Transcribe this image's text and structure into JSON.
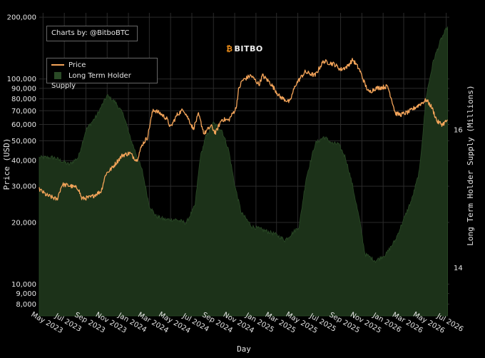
{
  "credit": "Charts by: @BitboBTC",
  "brand": {
    "name": "BITBO",
    "icon": "bitcoin-icon"
  },
  "colors": {
    "price": "#f5a55a",
    "supply_fill": "#1c3219",
    "supply_edge": "#2a4a26",
    "grid": "#2b2b2b"
  },
  "chart_data": {
    "type": "line",
    "xlabel": "Day",
    "ylabel": "Price (USD)",
    "y2label": "Long Term Holder Supply (Millions)",
    "y_scale": "log",
    "ylim": [
      7000,
      210000
    ],
    "y2lim": [
      13.3,
      17.7
    ],
    "xlim": [
      "2023-04-20",
      "2026-07-10"
    ],
    "grid": true,
    "legend_position": "top-left",
    "x_ticks": [
      "May 2023",
      "Jul 2023",
      "Sep 2023",
      "Nov 2023",
      "Jan 2024",
      "Mar 2024",
      "May 2024",
      "Jul 2024",
      "Sep 2024",
      "Nov 2024",
      "Jan 2025",
      "Mar 2025",
      "May 2025",
      "Jul 2025",
      "Sep 2025",
      "Nov 2025",
      "Jan 2026",
      "Mar 2026",
      "May 2026",
      "Jul 2026"
    ],
    "x_tick_dates": [
      "2023-05-01",
      "2023-07-01",
      "2023-09-01",
      "2023-11-01",
      "2024-01-01",
      "2024-03-01",
      "2024-05-01",
      "2024-07-01",
      "2024-09-01",
      "2024-11-01",
      "2025-01-01",
      "2025-03-01",
      "2025-05-01",
      "2025-07-01",
      "2025-09-01",
      "2025-11-01",
      "2026-01-01",
      "2026-03-01",
      "2026-05-01",
      "2026-07-01"
    ],
    "y_ticks": [
      {
        "value": 8000,
        "label": "8,000"
      },
      {
        "value": 9000,
        "label": "9,000"
      },
      {
        "value": 10000,
        "label": "10,000"
      },
      {
        "value": 20000,
        "label": "20,000"
      },
      {
        "value": 30000,
        "label": "30,000"
      },
      {
        "value": 40000,
        "label": "40,000"
      },
      {
        "value": 50000,
        "label": "50,000"
      },
      {
        "value": 60000,
        "label": "60,000"
      },
      {
        "value": 70000,
        "label": "70,000"
      },
      {
        "value": 80000,
        "label": "80,000"
      },
      {
        "value": 90000,
        "label": "90,000"
      },
      {
        "value": 100000,
        "label": "100,000"
      },
      {
        "value": 200000,
        "label": "200,000"
      }
    ],
    "y2_ticks": [
      {
        "value": 14,
        "label": "14"
      },
      {
        "value": 16,
        "label": "16"
      }
    ],
    "series": [
      {
        "name": "Price",
        "axis": "left",
        "x": [
          "2023-04-20",
          "2023-05-10",
          "2023-06-01",
          "2023-06-10",
          "2023-06-25",
          "2023-07-15",
          "2023-08-10",
          "2023-08-20",
          "2023-09-15",
          "2023-10-15",
          "2023-10-28",
          "2023-11-15",
          "2023-12-15",
          "2024-01-05",
          "2024-01-25",
          "2024-02-10",
          "2024-02-25",
          "2024-03-12",
          "2024-04-01",
          "2024-04-20",
          "2024-05-01",
          "2024-05-20",
          "2024-06-07",
          "2024-07-05",
          "2024-07-20",
          "2024-08-05",
          "2024-08-25",
          "2024-09-07",
          "2024-09-25",
          "2024-10-15",
          "2024-11-05",
          "2024-11-12",
          "2024-11-22",
          "2024-12-17",
          "2025-01-10",
          "2025-01-20",
          "2025-02-10",
          "2025-03-10",
          "2025-04-08",
          "2025-04-25",
          "2025-05-22",
          "2025-06-20",
          "2025-07-14",
          "2025-08-14",
          "2025-09-01",
          "2025-09-20",
          "2025-10-06",
          "2025-10-25",
          "2025-11-10",
          "2025-11-21",
          "2025-12-10",
          "2026-01-14",
          "2026-02-05",
          "2026-02-20",
          "2026-03-15",
          "2026-04-05",
          "2026-04-20",
          "2026-05-05",
          "2026-05-20",
          "2026-06-05",
          "2026-06-20",
          "2026-07-05"
        ],
        "values": [
          29000,
          27200,
          26300,
          25800,
          30600,
          30200,
          29300,
          26100,
          26500,
          28400,
          34400,
          36800,
          42500,
          43500,
          40000,
          48000,
          52000,
          71000,
          68000,
          64000,
          58000,
          67000,
          71000,
          57000,
          67000,
          54000,
          59000,
          54500,
          63500,
          63000,
          72000,
          88000,
          98000,
          104000,
          94000,
          104000,
          96000,
          82000,
          77000,
          94000,
          108000,
          104000,
          122000,
          118000,
          111000,
          115000,
          124000,
          111000,
          94000,
          86000,
          90000,
          92000,
          68000,
          67000,
          69000,
          73000,
          76000,
          79000,
          73000,
          62000,
          60000,
          63000
        ]
      },
      {
        "name": "Long Term Holder Supply",
        "axis": "right",
        "x": [
          "2023-04-20",
          "2023-06-01",
          "2023-07-15",
          "2023-08-10",
          "2023-09-01",
          "2023-10-01",
          "2023-11-01",
          "2023-11-25",
          "2023-12-20",
          "2024-01-05",
          "2024-01-20",
          "2024-02-10",
          "2024-03-01",
          "2024-03-20",
          "2024-04-15",
          "2024-05-15",
          "2024-06-15",
          "2024-07-10",
          "2024-07-25",
          "2024-08-10",
          "2024-09-01",
          "2024-09-25",
          "2024-10-15",
          "2024-11-01",
          "2024-11-20",
          "2024-12-20",
          "2025-01-20",
          "2025-02-20",
          "2025-03-10",
          "2025-03-25",
          "2025-04-15",
          "2025-05-05",
          "2025-05-25",
          "2025-06-20",
          "2025-07-15",
          "2025-08-10",
          "2025-08-25",
          "2025-09-15",
          "2025-10-05",
          "2025-10-25",
          "2025-11-10",
          "2025-12-10",
          "2026-01-10",
          "2026-02-05",
          "2026-03-01",
          "2026-03-25",
          "2026-04-15",
          "2026-05-05",
          "2026-05-25",
          "2026-06-15",
          "2026-07-05"
        ],
        "values": [
          15.6,
          15.6,
          15.5,
          15.6,
          16.0,
          16.2,
          16.5,
          16.4,
          16.2,
          15.9,
          15.7,
          15.4,
          14.9,
          14.75,
          14.7,
          14.7,
          14.65,
          14.9,
          15.6,
          15.9,
          16.1,
          16.0,
          15.7,
          15.2,
          14.8,
          14.6,
          14.55,
          14.5,
          14.45,
          14.4,
          14.5,
          14.6,
          15.3,
          15.8,
          15.9,
          15.8,
          15.8,
          15.6,
          15.2,
          14.7,
          14.2,
          14.1,
          14.2,
          14.4,
          14.7,
          15.0,
          15.4,
          16.5,
          17.0,
          17.3,
          17.5
        ]
      }
    ]
  }
}
